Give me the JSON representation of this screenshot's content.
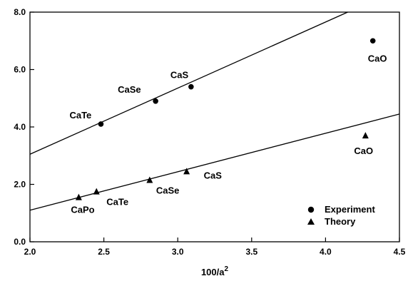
{
  "chart_data": {
    "type": "scatter",
    "title": "",
    "xlabel": "100/a",
    "xlabel_superscript": "2",
    "ylabel": "",
    "xlim": [
      2.0,
      4.5
    ],
    "ylim": [
      0.0,
      8.0
    ],
    "x_ticks": [
      "2.0",
      "2.5",
      "3.0",
      "3.5",
      "4.0",
      "4.5"
    ],
    "y_ticks": [
      "0.0",
      "2.0",
      "4.0",
      "6.0",
      "8.0"
    ],
    "grid": false,
    "legend_position": "bottom-right",
    "series": [
      {
        "name": "Experiment",
        "marker": "circle",
        "points": [
          {
            "x": 2.48,
            "y": 4.1,
            "label": "CaTe"
          },
          {
            "x": 2.85,
            "y": 4.9,
            "label": "CaSe"
          },
          {
            "x": 3.09,
            "y": 5.4,
            "label": "CaS"
          },
          {
            "x": 4.32,
            "y": 7.0,
            "label": "CaO"
          }
        ],
        "fit_line": {
          "x": [
            2.0,
            4.15
          ],
          "y": [
            3.05,
            8.0
          ]
        }
      },
      {
        "name": "Theory",
        "marker": "triangle",
        "points": [
          {
            "x": 2.33,
            "y": 1.55,
            "label": "CaPo"
          },
          {
            "x": 2.45,
            "y": 1.75,
            "label": "CaTe"
          },
          {
            "x": 2.81,
            "y": 2.15,
            "label": "CaSe"
          },
          {
            "x": 3.06,
            "y": 2.45,
            "label": "CaS"
          },
          {
            "x": 4.27,
            "y": 3.7,
            "label": "CaO"
          }
        ],
        "fit_line": {
          "x": [
            2.0,
            4.5
          ],
          "y": [
            1.1,
            4.45
          ]
        }
      }
    ]
  }
}
